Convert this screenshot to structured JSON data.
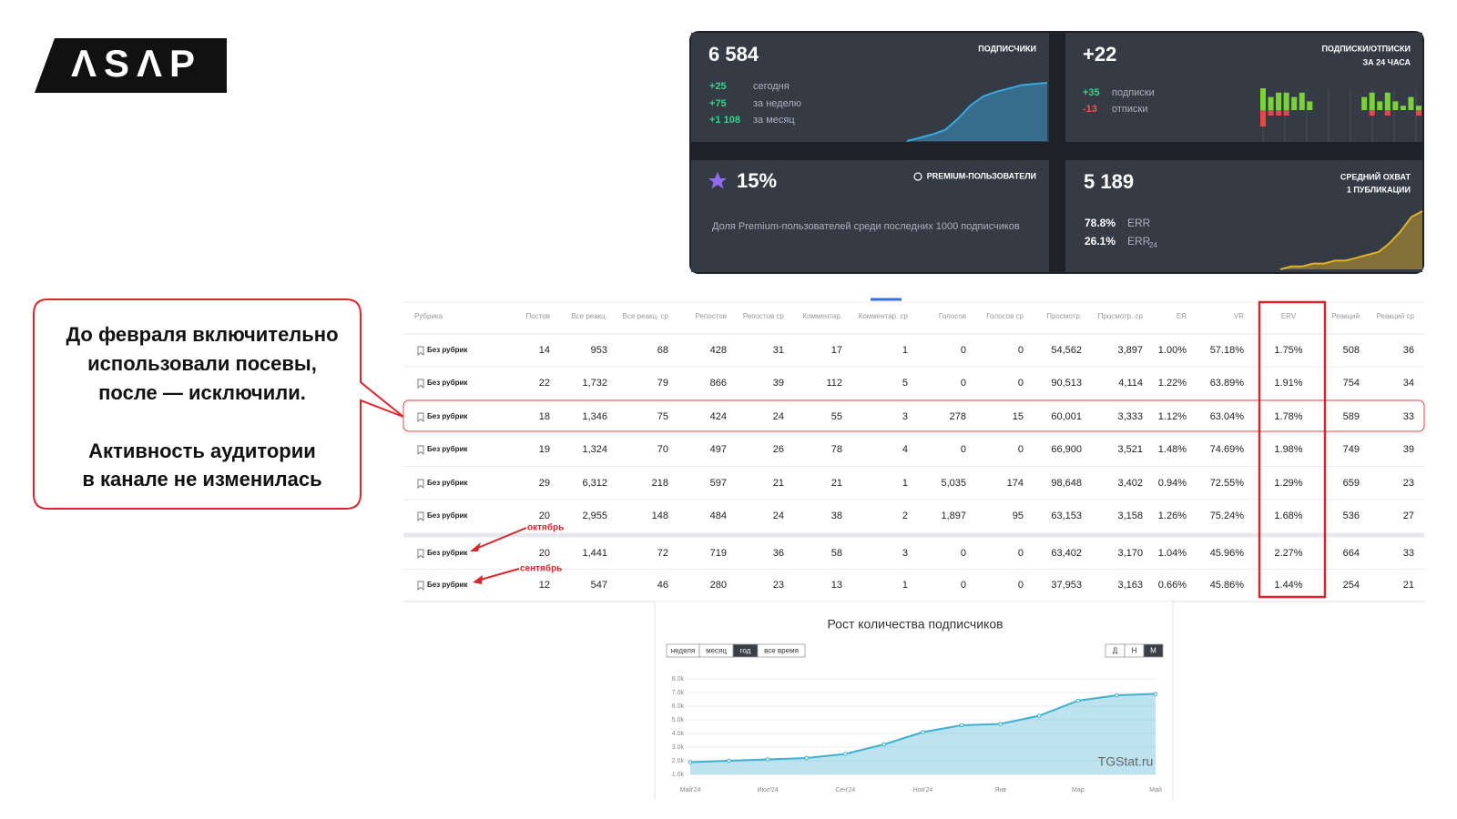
{
  "logo": "ΛSΛP",
  "callout": {
    "lines": [
      "До февраля включительно",
      "использовали посевы,",
      "после — исключили.",
      "Активность аудитории",
      "в канале не изменилась"
    ]
  },
  "cards": [
    {
      "value": "6 584",
      "label": "ПОДПИСЧИКИ",
      "rows": [
        [
          "+25",
          "сегодня"
        ],
        [
          "+75",
          "за неделю"
        ],
        [
          "+1 108",
          "за месяц"
        ]
      ],
      "spark": [
        0,
        3,
        6,
        10,
        20,
        32,
        40,
        44,
        47,
        50,
        51,
        52
      ]
    },
    {
      "value": "+22",
      "label": "ПОДПИСКИ/ОТПИСКИ",
      "sublabel": "ЗА 24 ЧАСА",
      "rows": [
        [
          "+35",
          "подписки"
        ],
        [
          "-13",
          "отписки"
        ]
      ],
      "subs": [
        5,
        3,
        4,
        4,
        3,
        4,
        2,
        0,
        0,
        0,
        0,
        0,
        0,
        3,
        4,
        2,
        4,
        2,
        1,
        3,
        1
      ],
      "unsubs": [
        -3,
        -1,
        -1,
        -1,
        0,
        0,
        0,
        0,
        0,
        0,
        0,
        0,
        0,
        0,
        -1,
        0,
        -1,
        0,
        0,
        0,
        -1
      ]
    },
    {
      "value": "15%",
      "label": "PREMIUM-ПОЛЬЗОВАТЕЛИ",
      "description": "Доля Premium-пользователей среди последних 1000 подписчиков"
    },
    {
      "value": "5 189",
      "label": "СРЕДНИЙ ОХВАТ",
      "sublabel": "1 ПУБЛИКАЦИИ",
      "rows": [
        [
          "78.8%",
          "ERR"
        ],
        [
          "26.1%",
          "ERR",
          "24"
        ]
      ],
      "spark": [
        0,
        1,
        1,
        2,
        2,
        3,
        3,
        4,
        5,
        6,
        9,
        13,
        18,
        20
      ]
    }
  ],
  "table": {
    "columns": [
      "Рубрика",
      "Постов",
      "Все реакц.",
      "Все реакц. ср",
      "Репостов",
      "Репостов ср",
      "Комментар.",
      "Комментар. ср",
      "Голосов",
      "Голосов ср",
      "Просмотр.",
      "Просмотр. ср",
      "ER",
      "VR",
      "ERV",
      "Реакций",
      "Реакций ср"
    ],
    "rows": [
      [
        "Без рубрик",
        "14",
        "953",
        "68",
        "428",
        "31",
        "17",
        "1",
        "0",
        "0",
        "54,562",
        "3,897",
        "1.00%",
        "57.18%",
        "1.75%",
        "508",
        "36"
      ],
      [
        "Без рубрик",
        "22",
        "1,732",
        "79",
        "866",
        "39",
        "112",
        "5",
        "0",
        "0",
        "90,513",
        "4,114",
        "1.22%",
        "63.89%",
        "1.91%",
        "754",
        "34"
      ],
      [
        "Без рубрик",
        "18",
        "1,346",
        "75",
        "424",
        "24",
        "55",
        "3",
        "278",
        "15",
        "60,001",
        "3,333",
        "1.12%",
        "63.04%",
        "1.78%",
        "589",
        "33"
      ],
      [
        "Без рубрик",
        "19",
        "1,324",
        "70",
        "497",
        "26",
        "78",
        "4",
        "0",
        "0",
        "66,900",
        "3,521",
        "1.48%",
        "74.69%",
        "1.98%",
        "749",
        "39"
      ],
      [
        "Без рубрик",
        "29",
        "6,312",
        "218",
        "597",
        "21",
        "21",
        "1",
        "5,035",
        "174",
        "98,648",
        "3,402",
        "0.94%",
        "72.55%",
        "1.29%",
        "659",
        "23"
      ],
      [
        "Без рубрик",
        "20",
        "2,955",
        "148",
        "484",
        "24",
        "38",
        "2",
        "1,897",
        "95",
        "63,153",
        "3,158",
        "1.26%",
        "75.24%",
        "1.68%",
        "536",
        "27"
      ],
      [
        "Без рубрик",
        "20",
        "1,441",
        "72",
        "719",
        "36",
        "58",
        "3",
        "0",
        "0",
        "63,402",
        "3,170",
        "1.04%",
        "45.96%",
        "2.27%",
        "664",
        "33"
      ],
      [
        "Без рубрик",
        "12",
        "547",
        "46",
        "280",
        "23",
        "13",
        "1",
        "0",
        "0",
        "37,953",
        "3,163",
        "0.66%",
        "45.86%",
        "1.44%",
        "254",
        "21"
      ]
    ],
    "annotations": [
      "октябрь",
      "сентябрь"
    ]
  },
  "chart_data": {
    "type": "area",
    "title": "Рост количества подписчиков",
    "periods": [
      "неделя",
      "месяц",
      "год",
      "все время"
    ],
    "granularity": [
      "Д",
      "Н",
      "М"
    ],
    "categories": [
      "Май'24",
      null,
      "Июл'24",
      null,
      "Сен'24",
      null,
      "Ноя'24",
      null,
      "Янв",
      null,
      "Мар",
      null,
      "Май"
    ],
    "values": [
      1900,
      2000,
      2100,
      2200,
      2500,
      3200,
      4100,
      4600,
      4700,
      5300,
      6400,
      6800,
      6900
    ],
    "color": "#3fb0d0",
    "ylim": [
      1000,
      8000
    ],
    "yticks": [
      {
        "value": 1000,
        "label": "1.0k"
      },
      {
        "value": 2000,
        "label": "2.0k"
      },
      {
        "value": 3000,
        "label": "3.0k"
      },
      {
        "value": 4000,
        "label": "4.0k"
      },
      {
        "value": 5000,
        "label": "5.0k"
      },
      {
        "value": 6000,
        "label": "6.0k"
      },
      {
        "value": 7000,
        "label": "7.0k"
      },
      {
        "value": 8000,
        "label": "8.0k"
      }
    ],
    "watermark": "TGStat.ru"
  }
}
